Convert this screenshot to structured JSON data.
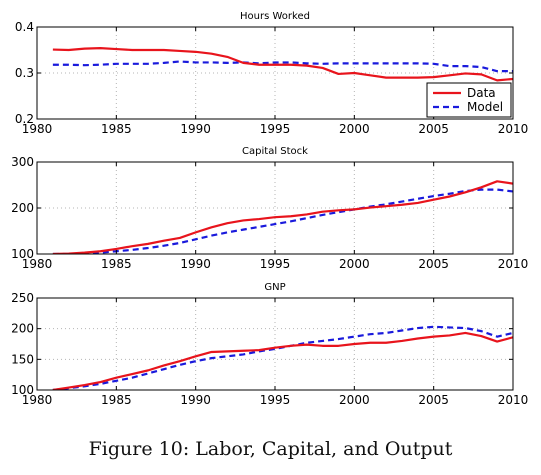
{
  "figure": {
    "caption": "Figure 10: Labor, Capital, and Output",
    "colors": {
      "data": "#e8141c",
      "model": "#1a1adc",
      "grid": "#b5b5b5",
      "axis": "#000000"
    }
  },
  "chart_data": [
    {
      "type": "line",
      "title": "Hours Worked",
      "xlabel": "",
      "ylabel": "",
      "xlim": [
        1980,
        2010
      ],
      "ylim": [
        0.2,
        0.4
      ],
      "xticks": [
        1980,
        1985,
        1990,
        1995,
        2000,
        2005,
        2010
      ],
      "xtick_labels": [
        "1980",
        "1985",
        "1990",
        "1995",
        "2000",
        "2005",
        "2010"
      ],
      "yticks": [
        0.2,
        0.3,
        0.4
      ],
      "ytick_labels": [
        "0.2",
        "0.3",
        "0.4"
      ],
      "grid": true,
      "legend": {
        "placement": "bottom-right",
        "entries": [
          "Data",
          "Model"
        ]
      },
      "x": [
        1981,
        1982,
        1983,
        1984,
        1985,
        1986,
        1987,
        1988,
        1989,
        1990,
        1991,
        1992,
        1993,
        1994,
        1995,
        1996,
        1997,
        1998,
        1999,
        2000,
        2001,
        2002,
        2003,
        2004,
        2005,
        2006,
        2007,
        2008,
        2009,
        2010
      ],
      "series": [
        {
          "name": "Data",
          "style": "solid",
          "values": [
            0.351,
            0.35,
            0.353,
            0.354,
            0.352,
            0.35,
            0.35,
            0.35,
            0.348,
            0.346,
            0.342,
            0.335,
            0.322,
            0.318,
            0.318,
            0.318,
            0.316,
            0.311,
            0.298,
            0.3,
            0.295,
            0.29,
            0.29,
            0.29,
            0.291,
            0.295,
            0.299,
            0.297,
            0.284,
            0.287
          ]
        },
        {
          "name": "Model",
          "style": "dashed",
          "values": [
            0.318,
            0.318,
            0.317,
            0.318,
            0.32,
            0.32,
            0.32,
            0.322,
            0.325,
            0.323,
            0.323,
            0.322,
            0.323,
            0.321,
            0.323,
            0.323,
            0.321,
            0.32,
            0.321,
            0.321,
            0.321,
            0.321,
            0.321,
            0.321,
            0.32,
            0.315,
            0.315,
            0.313,
            0.304,
            0.304
          ]
        }
      ]
    },
    {
      "type": "line",
      "title": "Capital Stock",
      "xlabel": "",
      "ylabel": "",
      "xlim": [
        1980,
        2010
      ],
      "ylim": [
        100,
        300
      ],
      "xticks": [
        1980,
        1985,
        1990,
        1995,
        2000,
        2005,
        2010
      ],
      "xtick_labels": [
        "1980",
        "1985",
        "1990",
        "1995",
        "2000",
        "2005",
        "2010"
      ],
      "yticks": [
        100,
        200,
        300
      ],
      "ytick_labels": [
        "100",
        "200",
        "300"
      ],
      "grid": true,
      "x": [
        1981,
        1982,
        1983,
        1984,
        1985,
        1986,
        1987,
        1988,
        1989,
        1990,
        1991,
        1992,
        1993,
        1994,
        1995,
        1996,
        1997,
        1998,
        1999,
        2000,
        2001,
        2002,
        2003,
        2004,
        2005,
        2006,
        2007,
        2008,
        2009,
        2010
      ],
      "series": [
        {
          "name": "Data",
          "style": "solid",
          "values": [
            100,
            101,
            103,
            106,
            111,
            117,
            122,
            129,
            135,
            147,
            158,
            167,
            173,
            176,
            180,
            182,
            186,
            192,
            195,
            197,
            201,
            204,
            207,
            211,
            218,
            225,
            234,
            245,
            258,
            253
          ]
        },
        {
          "name": "Model",
          "style": "dashed",
          "values": [
            100,
            100,
            101,
            103,
            106,
            109,
            113,
            118,
            124,
            132,
            140,
            147,
            153,
            159,
            165,
            171,
            178,
            185,
            191,
            197,
            203,
            208,
            214,
            220,
            226,
            231,
            237,
            240,
            240,
            236
          ]
        }
      ]
    },
    {
      "type": "line",
      "title": "GNP",
      "xlabel": "",
      "ylabel": "",
      "xlim": [
        1980,
        2010
      ],
      "ylim": [
        100,
        250
      ],
      "xticks": [
        1980,
        1985,
        1990,
        1995,
        2000,
        2005,
        2010
      ],
      "xtick_labels": [
        "1980",
        "1985",
        "1990",
        "1995",
        "2000",
        "2005",
        "2010"
      ],
      "yticks": [
        100,
        150,
        200,
        250
      ],
      "ytick_labels": [
        "100",
        "150",
        "200",
        "250"
      ],
      "grid": true,
      "x": [
        1981,
        1982,
        1983,
        1984,
        1985,
        1986,
        1987,
        1988,
        1989,
        1990,
        1991,
        1992,
        1993,
        1994,
        1995,
        1996,
        1997,
        1998,
        1999,
        2000,
        2001,
        2002,
        2003,
        2004,
        2005,
        2006,
        2007,
        2008,
        2009,
        2010
      ],
      "series": [
        {
          "name": "Data",
          "style": "solid",
          "values": [
            100,
            104,
            108,
            113,
            120,
            126,
            132,
            140,
            147,
            155,
            162,
            163,
            164,
            165,
            169,
            172,
            174,
            172,
            172,
            175,
            177,
            177,
            180,
            184,
            187,
            189,
            193,
            188,
            179,
            186
          ]
        },
        {
          "name": "Model",
          "style": "dashed",
          "values": [
            100,
            103,
            106,
            110,
            115,
            120,
            127,
            134,
            141,
            147,
            152,
            155,
            158,
            163,
            167,
            172,
            177,
            180,
            183,
            187,
            191,
            193,
            197,
            201,
            203,
            202,
            201,
            196,
            187,
            193
          ]
        }
      ]
    }
  ]
}
